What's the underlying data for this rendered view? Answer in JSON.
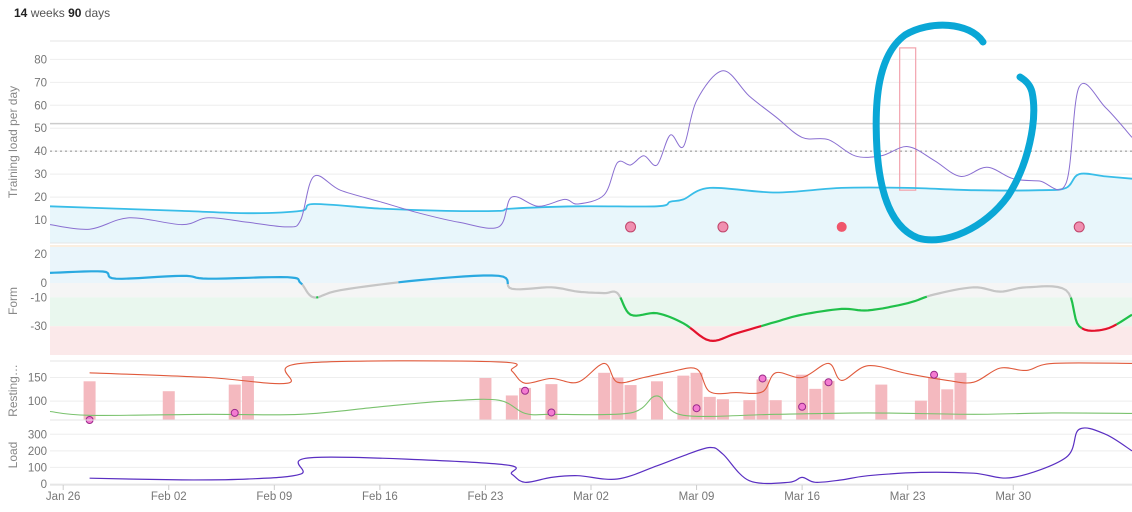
{
  "header": {
    "n_weeks": "14",
    "weeks_label": "weeks",
    "n_days": "90",
    "days_label": "days"
  },
  "chart_data": [
    {
      "type": "line",
      "name": "training-load",
      "ylabel": "Training load per day",
      "ylim": [
        0,
        88
      ],
      "yticks": [
        10,
        20,
        30,
        40,
        50,
        60,
        70,
        80
      ],
      "reference_lines": [
        {
          "value": 52,
          "style": "solid"
        },
        {
          "value": 40,
          "style": "dotted"
        }
      ],
      "series": [
        {
          "color": "#8a6fd1",
          "points": [
            [
              0,
              8
            ],
            [
              3,
              6
            ],
            [
              6,
              11
            ],
            [
              10,
              8
            ],
            [
              12,
              11
            ],
            [
              15,
              9
            ],
            [
              18,
              7
            ],
            [
              19,
              10
            ],
            [
              20,
              29
            ],
            [
              22,
              23
            ],
            [
              25,
              18
            ],
            [
              28,
              13
            ],
            [
              31,
              9
            ],
            [
              34,
              7
            ],
            [
              35,
              20
            ],
            [
              37,
              16
            ],
            [
              39,
              19
            ],
            [
              40,
              17
            ],
            [
              42,
              21
            ],
            [
              43,
              35
            ],
            [
              44,
              34
            ],
            [
              45,
              38
            ],
            [
              46,
              34
            ],
            [
              47,
              47
            ],
            [
              48,
              42
            ],
            [
              49,
              62
            ],
            [
              51,
              75
            ],
            [
              53,
              64
            ],
            [
              55,
              55
            ],
            [
              57,
              46
            ],
            [
              59,
              45
            ],
            [
              61,
              38
            ],
            [
              63,
              38
            ],
            [
              65,
              42
            ],
            [
              67,
              36
            ],
            [
              69,
              29
            ],
            [
              71,
              33
            ],
            [
              73,
              28
            ],
            [
              75,
              27
            ],
            [
              77,
              26
            ],
            [
              78,
              68
            ],
            [
              80,
              59
            ],
            [
              82,
              46
            ]
          ]
        },
        {
          "color": "#38bde8",
          "fill": "#e8f6fb",
          "points": [
            [
              0,
              16
            ],
            [
              5,
              15
            ],
            [
              10,
              14
            ],
            [
              15,
              13
            ],
            [
              19,
              14
            ],
            [
              20,
              17
            ],
            [
              25,
              15
            ],
            [
              30,
              14
            ],
            [
              34,
              14
            ],
            [
              35,
              15
            ],
            [
              40,
              16
            ],
            [
              46,
              16
            ],
            [
              47,
              18
            ],
            [
              48,
              19
            ],
            [
              50,
              24
            ],
            [
              55,
              22
            ],
            [
              60,
              24
            ],
            [
              65,
              24
            ],
            [
              70,
              23
            ],
            [
              75,
              23
            ],
            [
              77,
              24
            ],
            [
              78,
              30
            ],
            [
              80,
              29
            ],
            [
              82,
              28
            ]
          ]
        }
      ],
      "bar_outline": {
        "x": 65,
        "low": 23,
        "high": 85
      },
      "markers": [
        {
          "x": 44,
          "y": 7
        },
        {
          "x": 51,
          "y": 7
        },
        {
          "x": 60,
          "y": 7,
          "filled": true
        },
        {
          "x": 78,
          "y": 7
        }
      ]
    },
    {
      "type": "line",
      "name": "form",
      "ylabel": "Form",
      "ylim": [
        -50,
        25
      ],
      "yticks": [
        20,
        0,
        -10,
        -30
      ],
      "ytick_labels": [
        "20",
        "0",
        "-10",
        "-30"
      ],
      "bands": [
        {
          "from": 25,
          "to": 0,
          "color": "#eaf5fb"
        },
        {
          "from": 0,
          "to": -10,
          "color": "#f5f5f5"
        },
        {
          "from": -10,
          "to": -30,
          "color": "#e9f7ee"
        },
        {
          "from": -30,
          "to": -50,
          "color": "#fbe9ea"
        }
      ],
      "series": [
        {
          "points": [
            [
              0,
              7
            ],
            [
              4,
              8
            ],
            [
              5,
              3
            ],
            [
              10,
              5
            ],
            [
              12,
              3
            ],
            [
              18,
              4
            ],
            [
              19,
              0
            ],
            [
              20,
              -10
            ],
            [
              22,
              -5
            ],
            [
              28,
              2
            ],
            [
              34,
              5
            ],
            [
              35,
              -4
            ],
            [
              38,
              -3
            ],
            [
              40,
              -6
            ],
            [
              42,
              -7
            ],
            [
              43,
              -7
            ],
            [
              44,
              -22
            ],
            [
              46,
              -21
            ],
            [
              48,
              -28
            ],
            [
              50,
              -40
            ],
            [
              52,
              -35
            ],
            [
              55,
              -27
            ],
            [
              57,
              -22
            ],
            [
              60,
              -18
            ],
            [
              62,
              -19
            ],
            [
              65,
              -14
            ],
            [
              67,
              -8
            ],
            [
              70,
              -3
            ],
            [
              72,
              -6
            ],
            [
              74,
              -3
            ],
            [
              77,
              -5
            ],
            [
              78,
              -30
            ],
            [
              80,
              -32
            ],
            [
              82,
              -22
            ]
          ]
        }
      ]
    },
    {
      "type": "bar",
      "name": "resting",
      "ylabel": "Resting…",
      "ylim": [
        60,
        185
      ],
      "yticks": [
        100,
        150
      ],
      "bars": [
        [
          3,
          142
        ],
        [
          9,
          121
        ],
        [
          14,
          135
        ],
        [
          15,
          153
        ],
        [
          33,
          149
        ],
        [
          35,
          112
        ],
        [
          36,
          128
        ],
        [
          38,
          136
        ],
        [
          42,
          160
        ],
        [
          43,
          150
        ],
        [
          44,
          134
        ],
        [
          46,
          142
        ],
        [
          48,
          154
        ],
        [
          49,
          160
        ],
        [
          50,
          109
        ],
        [
          51,
          104
        ],
        [
          53,
          102
        ],
        [
          54,
          146
        ],
        [
          55,
          102
        ],
        [
          57,
          156
        ],
        [
          58,
          126
        ],
        [
          59,
          143
        ],
        [
          63,
          135
        ],
        [
          66,
          101
        ],
        [
          67,
          150
        ],
        [
          68,
          125
        ],
        [
          69,
          160
        ]
      ],
      "markers": [
        [
          3,
          60
        ],
        [
          14,
          75
        ],
        [
          36,
          122
        ],
        [
          38,
          76
        ],
        [
          49,
          85
        ],
        [
          54,
          148
        ],
        [
          57,
          88
        ],
        [
          59,
          140
        ],
        [
          67,
          156
        ]
      ],
      "series": [
        {
          "color": "#e05a3c",
          "points": [
            [
              3,
              160
            ],
            [
              12,
              150
            ],
            [
              18,
              138
            ],
            [
              19,
              180
            ],
            [
              34,
              183
            ],
            [
              35,
              164
            ],
            [
              36,
              138
            ],
            [
              38,
              148
            ],
            [
              40,
              140
            ],
            [
              42,
              180
            ],
            [
              43,
              140
            ],
            [
              45,
              150
            ],
            [
              47,
              162
            ],
            [
              49,
              168
            ],
            [
              50,
              120
            ],
            [
              52,
              118
            ],
            [
              54,
              120
            ],
            [
              55,
              160
            ],
            [
              57,
              150
            ],
            [
              59,
              180
            ],
            [
              60,
              144
            ],
            [
              62,
              175
            ],
            [
              65,
              158
            ],
            [
              68,
              144
            ],
            [
              70,
              140
            ],
            [
              72,
              170
            ],
            [
              74,
              165
            ],
            [
              76,
              180
            ],
            [
              82,
              180
            ]
          ]
        },
        {
          "color": "#7ac26e",
          "points": [
            [
              0,
              78
            ],
            [
              3,
              70
            ],
            [
              12,
              72
            ],
            [
              19,
              72
            ],
            [
              25,
              88
            ],
            [
              30,
              100
            ],
            [
              34,
              102
            ],
            [
              36,
              74
            ],
            [
              38,
              72
            ],
            [
              44,
              75
            ],
            [
              46,
              111
            ],
            [
              48,
              70
            ],
            [
              55,
              72
            ],
            [
              62,
              75
            ],
            [
              70,
              72
            ],
            [
              76,
              75
            ],
            [
              82,
              74
            ]
          ]
        }
      ]
    },
    {
      "type": "area",
      "name": "load",
      "ylabel": "Load",
      "ylim": [
        0,
        350
      ],
      "yticks": [
        0,
        100,
        200,
        300
      ],
      "series": [
        {
          "color": "#5a2fc2",
          "points": [
            [
              3,
              35
            ],
            [
              10,
              25
            ],
            [
              15,
              30
            ],
            [
              19,
              60
            ],
            [
              20,
              160
            ],
            [
              34,
              120
            ],
            [
              35,
              60
            ],
            [
              36,
              10
            ],
            [
              38,
              40
            ],
            [
              40,
              50
            ],
            [
              43,
              30
            ],
            [
              46,
              110
            ],
            [
              48,
              170
            ],
            [
              50,
              220
            ],
            [
              51,
              180
            ],
            [
              53,
              20
            ],
            [
              56,
              10
            ],
            [
              57,
              40
            ],
            [
              58,
              10
            ],
            [
              60,
              25
            ],
            [
              62,
              50
            ],
            [
              66,
              70
            ],
            [
              70,
              65
            ],
            [
              73,
              40
            ],
            [
              77,
              160
            ],
            [
              78,
              330
            ],
            [
              80,
              300
            ],
            [
              82,
              200
            ]
          ]
        }
      ]
    }
  ],
  "x_axis": {
    "start": 0,
    "end": 82,
    "ticks": [
      {
        "x": 1,
        "label": "Jan 26"
      },
      {
        "x": 9,
        "label": "Feb 02"
      },
      {
        "x": 17,
        "label": "Feb 09"
      },
      {
        "x": 25,
        "label": "Feb 16"
      },
      {
        "x": 33,
        "label": "Feb 23"
      },
      {
        "x": 41,
        "label": "Mar 02"
      },
      {
        "x": 49,
        "label": "Mar 09"
      },
      {
        "x": 57,
        "label": "Mar 16"
      },
      {
        "x": 65,
        "label": "Mar 23"
      },
      {
        "x": 73,
        "label": "Mar 30"
      }
    ]
  },
  "colors": {
    "annotation_stroke": "#0aa7d6",
    "marker_pink": "#f08fb0",
    "marker_red": "#f0566b",
    "bar_pink": "#f4b9bf",
    "form_blue": "#2aa9e0",
    "form_gray": "#c6c6c6",
    "form_green": "#20c04a",
    "form_red": "#e3122c"
  }
}
